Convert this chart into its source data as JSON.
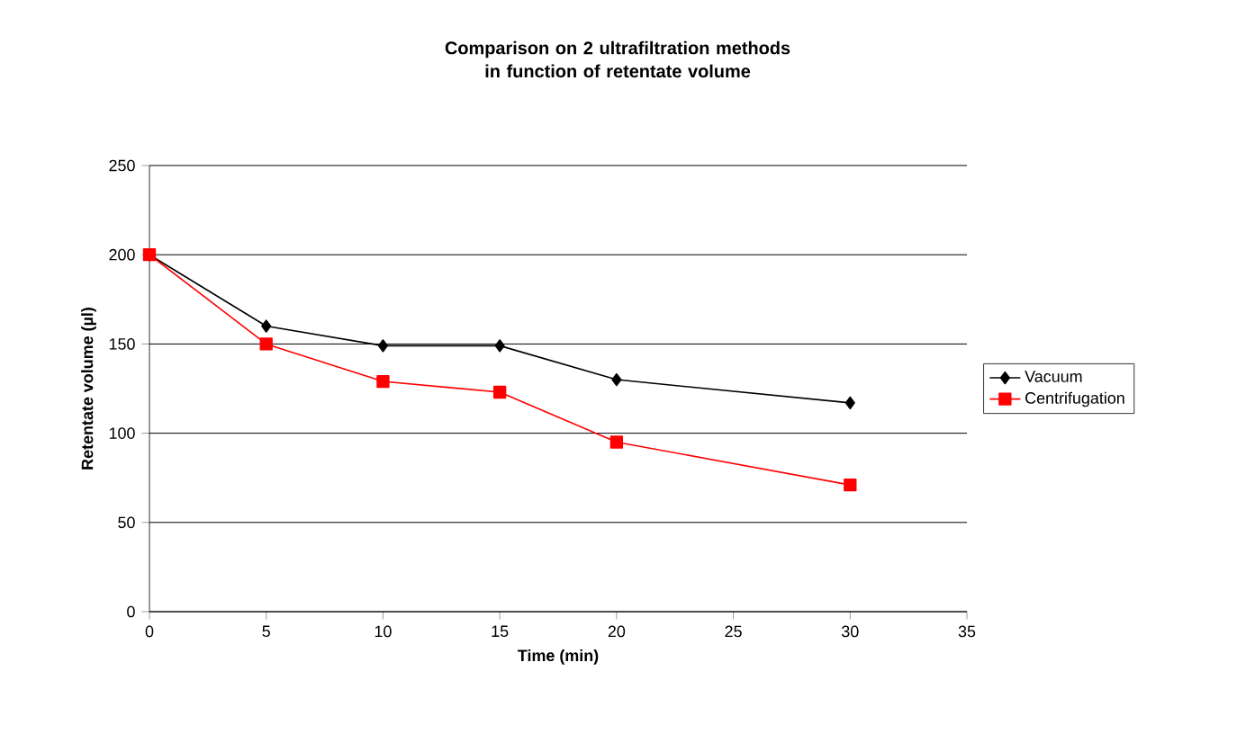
{
  "chart_data": {
    "type": "line",
    "title": "Comparison on 2 ultrafiltration methods in function of retentate volume",
    "xlabel": "Time (min)",
    "ylabel": "Retentate volume (µl)",
    "x": [
      0,
      5,
      10,
      15,
      20,
      30
    ],
    "series": [
      {
        "name": "Vacuum",
        "color": "#000000",
        "marker": "diamond",
        "values": [
          200,
          160,
          149,
          149,
          130,
          117
        ]
      },
      {
        "name": "Centrifugation",
        "color": "#ff0000",
        "marker": "square",
        "values": [
          200,
          150,
          129,
          123,
          95,
          71
        ]
      }
    ],
    "xlim": [
      0,
      35
    ],
    "xticks": [
      0,
      5,
      10,
      15,
      20,
      25,
      30,
      35
    ],
    "ylim": [
      0,
      250
    ],
    "yticks": [
      0,
      50,
      100,
      150,
      200,
      250
    ],
    "grid": "y",
    "legend": "right",
    "line_style": "solid"
  }
}
